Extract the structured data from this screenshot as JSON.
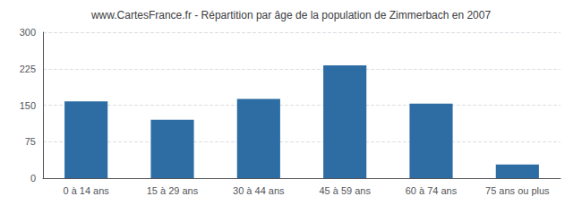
{
  "chart_data": {
    "type": "bar",
    "title": "www.CartesFrance.fr - Répartition par âge de la population de Zimmerbach en 2007",
    "categories": [
      "0 à 14 ans",
      "15 à 29 ans",
      "30 à 44 ans",
      "45 à 59 ans",
      "60 à 74 ans",
      "75 ans ou plus"
    ],
    "values": [
      158,
      120,
      163,
      232,
      153,
      28
    ],
    "color": "#2e6da4",
    "ylim": [
      0,
      300
    ],
    "yticks": [
      0,
      75,
      150,
      225,
      300
    ],
    "grid": true
  }
}
